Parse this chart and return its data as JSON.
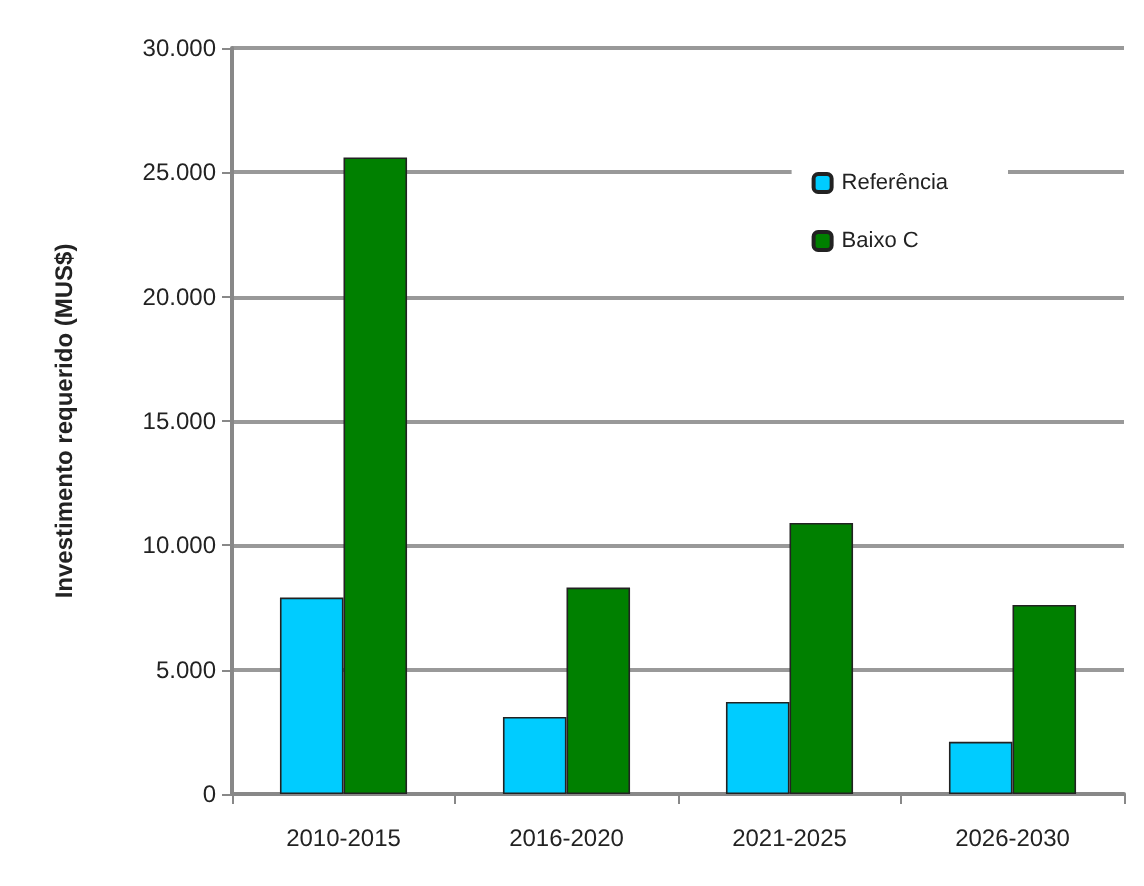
{
  "chart_data": {
    "type": "bar",
    "ylabel": "Investimento requerido (MUS$)",
    "categories": [
      "2010-2015",
      "2016-2020",
      "2021-2025",
      "2026-2030"
    ],
    "series": [
      {
        "name": "Referência",
        "color": "#00ccff",
        "values": [
          7900,
          3100,
          3700,
          2100
        ]
      },
      {
        "name": "Baixo C",
        "color": "#008000",
        "values": [
          25600,
          8300,
          10900,
          7600
        ]
      }
    ],
    "ylim": [
      0,
      30000
    ],
    "yticks": [
      0,
      {
        "value": 5000,
        "label": "5.000"
      },
      {
        "value": 10000,
        "label": "10.000"
      },
      {
        "value": 15000,
        "label": "15.000"
      },
      {
        "value": 20000,
        "label": "20.000"
      },
      {
        "value": 25000,
        "label": "25.000"
      },
      {
        "value": 30000,
        "label": "30.000"
      }
    ],
    "grid": "y",
    "legend": "top right"
  }
}
